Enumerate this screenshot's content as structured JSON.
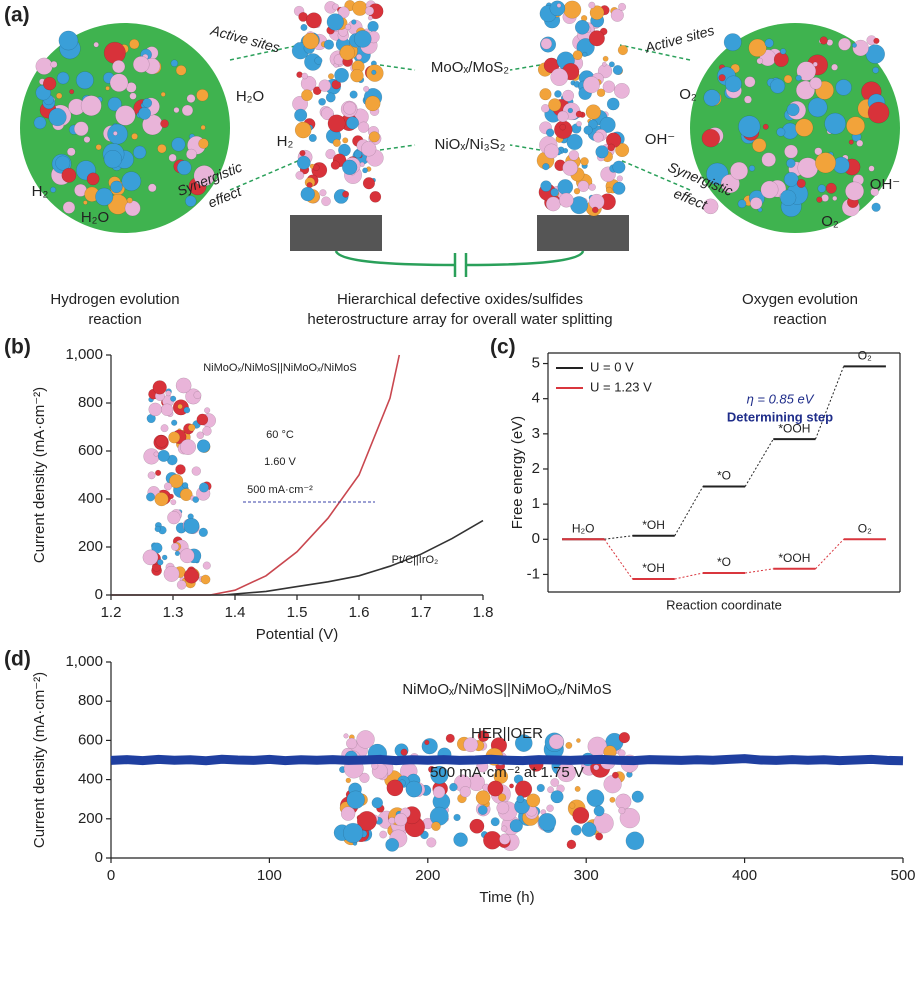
{
  "panel_a": {
    "label": "(a)",
    "materials": [
      "MoOₓ/MoS₂",
      "NiOₓ/Ni₃S₂"
    ],
    "left_labels": [
      "Active sites",
      "Synergistic",
      "effect"
    ],
    "right_labels": [
      "Active sites",
      "Synergistic",
      "effect"
    ],
    "her_species": [
      "H₂O",
      "H₂",
      "H₂",
      "H₂O"
    ],
    "oer_species": [
      "O₂",
      "OH⁻",
      "OH⁻",
      "O₂"
    ],
    "captions": [
      [
        "Hydrogen evolution",
        "reaction"
      ],
      [
        "Hierarchical defective oxides/sulfides",
        "heterostructure array for overall water splitting"
      ],
      [
        "Oxygen evolution",
        "reaction"
      ]
    ]
  },
  "chart_data": [
    {
      "type": "line",
      "panel": "(b)",
      "xlabel": "Potential (V)",
      "ylabel": "Current density (mA·cm⁻²)",
      "xlim": [
        1.2,
        1.8
      ],
      "xticks": [
        1.2,
        1.3,
        1.4,
        1.5,
        1.6,
        1.7,
        1.8
      ],
      "ylim": [
        0,
        1000
      ],
      "yticks": [
        0,
        200,
        400,
        600,
        800,
        {
          "value": 1000,
          "label": "1,000"
        }
      ],
      "annotations": [
        "60 °C",
        "1.60 V",
        "500 mA·cm⁻²"
      ],
      "series": [
        {
          "name": "NiMoOₓ/NiMoS||NiMoOₓ/NiMoS",
          "color": "#c9474f",
          "x": [
            1.2,
            1.36,
            1.4,
            1.45,
            1.5,
            1.55,
            1.6,
            1.65,
            1.665
          ],
          "values": [
            0,
            0,
            20,
            80,
            180,
            320,
            500,
            820,
            1000
          ]
        },
        {
          "name": "Pt/C||IrO₂",
          "color": "#333333",
          "x": [
            1.2,
            1.38,
            1.45,
            1.5,
            1.55,
            1.6,
            1.65,
            1.7,
            1.75,
            1.8
          ],
          "values": [
            0,
            0,
            15,
            35,
            55,
            80,
            120,
            170,
            235,
            310
          ]
        }
      ]
    },
    {
      "type": "step",
      "panel": "(c)",
      "xlabel": "Reaction coordinate",
      "ylabel": "Free energy (eV)",
      "categories": [
        "H₂O",
        "*OH",
        "*O",
        "*OOH",
        "O₂"
      ],
      "ylim": [
        -1.5,
        5.3
      ],
      "yticks": [
        -1,
        0,
        1,
        2,
        3,
        4,
        5
      ],
      "annotations": [
        "η = 0.85 eV",
        "Determining step"
      ],
      "series": [
        {
          "name": "U = 0 V",
          "color": "#222222",
          "values": [
            0,
            0.1,
            1.5,
            2.85,
            4.92
          ]
        },
        {
          "name": "U = 1.23 V",
          "color": "#d9363e",
          "values": [
            0,
            -1.13,
            -0.96,
            -0.84,
            0
          ]
        }
      ]
    },
    {
      "type": "line",
      "panel": "(d)",
      "xlabel": "Time (h)",
      "ylabel": "Current density (mA·cm⁻²)",
      "xlim": [
        0,
        500
      ],
      "xticks": [
        0,
        100,
        200,
        300,
        400,
        500
      ],
      "ylim": [
        0,
        1000
      ],
      "yticks": [
        0,
        200,
        400,
        600,
        800,
        {
          "value": 1000,
          "label": "1,000"
        }
      ],
      "annotations": [
        "NiMoOₓ/NiMoS||NiMoOₓ/NiMoS",
        "HER||OER",
        "500 mA·cm⁻² at 1.75 V"
      ],
      "x": [
        0,
        10,
        20,
        30,
        40,
        50,
        60,
        70,
        80,
        90,
        100,
        110,
        120,
        130,
        140,
        150,
        160,
        170,
        180,
        190,
        200,
        210,
        220,
        230,
        240,
        250,
        260,
        270,
        280,
        290,
        300,
        310,
        320,
        330,
        340,
        350,
        360,
        370,
        380,
        390,
        400,
        410,
        420,
        430,
        440,
        450,
        460,
        470,
        480,
        490,
        500
      ],
      "series": [
        {
          "name": "",
          "color": "#1f3fa0",
          "values": [
            498,
            502,
            497,
            503,
            499,
            501,
            496,
            504,
            500,
            498,
            503,
            497,
            501,
            499,
            502,
            498,
            500,
            503,
            497,
            501,
            499,
            502,
            498,
            500,
            504,
            499,
            497,
            502,
            500,
            498,
            501,
            503,
            499,
            497,
            502,
            500,
            498,
            501,
            499,
            503,
            507,
            500,
            498,
            502,
            499,
            501,
            497,
            500,
            503,
            498,
            496
          ]
        }
      ]
    }
  ]
}
